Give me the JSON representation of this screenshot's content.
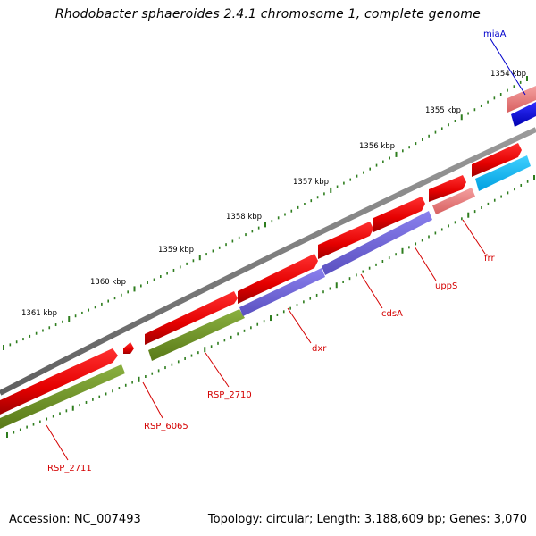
{
  "title": "Rhodobacter sphaeroides 2.4.1 chromosome 1, complete genome",
  "footer": {
    "accession": "Accession: NC_007493",
    "summary": "Topology: circular; Length: 3,188,609 bp; Genes: 3,070"
  },
  "colors": {
    "backbone": "#7a7a7a",
    "tick": "#2e7d1e",
    "gene_label_red": "#d40000",
    "gene_label_blue": "#0000cc"
  },
  "kbp_labels": [
    {
      "text": "1354 kbp"
    },
    {
      "text": "1355 kbp"
    },
    {
      "text": "1356 kbp"
    },
    {
      "text": "1357 kbp"
    },
    {
      "text": "1358 kbp"
    },
    {
      "text": "1359 kbp"
    },
    {
      "text": "1360 kbp"
    },
    {
      "text": "1361 kbp"
    }
  ],
  "gene_labels": [
    {
      "name": "miaA",
      "color": "blue"
    },
    {
      "name": "frr",
      "color": "red"
    },
    {
      "name": "uppS",
      "color": "red"
    },
    {
      "name": "cdsA",
      "color": "red"
    },
    {
      "name": "dxr",
      "color": "red"
    },
    {
      "name": "RSP_2710",
      "color": "red"
    },
    {
      "name": "RSP_6065",
      "color": "red"
    },
    {
      "name": "RSP_2711",
      "color": "red"
    }
  ]
}
